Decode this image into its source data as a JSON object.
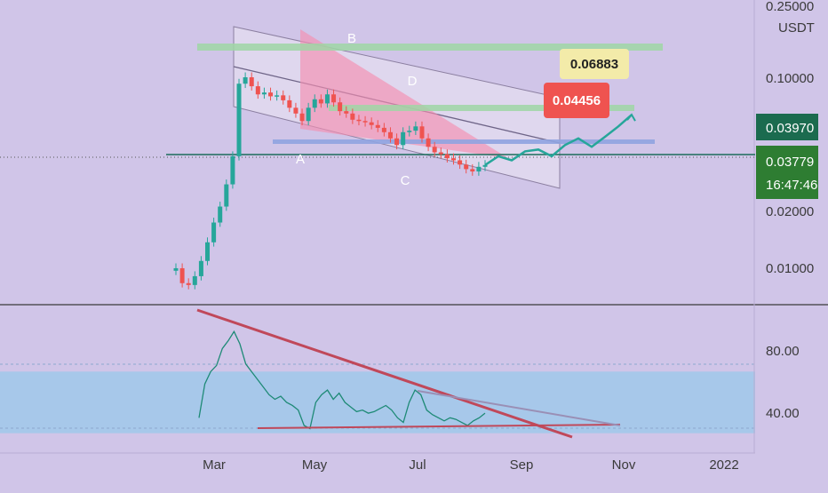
{
  "colors": {
    "background": "#d0c5e8",
    "candle_up": "#26a69a",
    "candle_down": "#ef5350",
    "channel_fill": "#e4dcf0",
    "pink_wedge": "#f48fb1",
    "green_band": "#9fd6a5",
    "blue_band": "#8fa3e0",
    "rsi_zone": "#a7c8ea",
    "rsi_line": "#1e8a76",
    "trendline": "#c0485a",
    "projection": "#26a69a",
    "label_red": "#ef5350",
    "label_yellow": "#f3eba9",
    "label_green_dark": "#1b6b4f",
    "label_green": "#2e7d32"
  },
  "price_axis": {
    "unit": "USDT",
    "ticks": [
      "0.25000",
      "0.10000",
      "0.02000",
      "0.01000"
    ],
    "current_price_label": "0.03970",
    "last_price_label": "0.03779",
    "countdown_label": "16:47:46"
  },
  "rsi_axis": {
    "ticks": [
      "80.00",
      "40.00"
    ]
  },
  "time_axis": {
    "labels": [
      "Mar",
      "May",
      "Jul",
      "Sep",
      "Nov",
      "2022"
    ]
  },
  "annotations": {
    "wave_labels": [
      "A",
      "B",
      "C",
      "D"
    ],
    "target_low": "0.04456",
    "target_high": "0.06883"
  },
  "chart_data": {
    "type": "candlestick",
    "y_scale": "log",
    "ylim": [
      0.0075,
      0.25
    ],
    "x": [
      "Feb-20",
      "Feb-22",
      "Feb-24",
      "Feb-26",
      "Feb-28",
      "Mar-02",
      "Mar-04",
      "Mar-06",
      "Mar-08",
      "Mar-10",
      "Mar-14",
      "Mar-18",
      "Mar-22",
      "Mar-26",
      "Mar-30",
      "Apr-03",
      "Apr-07",
      "Apr-11",
      "Apr-15",
      "Apr-19",
      "Apr-23",
      "Apr-27",
      "May-01",
      "May-05",
      "May-09",
      "May-13",
      "May-17",
      "May-21",
      "May-25",
      "May-29",
      "Jun-02",
      "Jun-06",
      "Jun-10",
      "Jun-14",
      "Jun-18",
      "Jun-22",
      "Jun-26",
      "Jun-30",
      "Jul-04",
      "Jul-08",
      "Jul-12",
      "Jul-16",
      "Jul-20",
      "Jul-24",
      "Jul-28",
      "Aug-01",
      "Aug-05",
      "Aug-09",
      "Aug-13",
      "Aug-17"
    ],
    "close": [
      0.011,
      0.0092,
      0.009,
      0.01,
      0.012,
      0.015,
      0.019,
      0.023,
      0.03,
      0.042,
      0.1,
      0.108,
      0.097,
      0.088,
      0.09,
      0.086,
      0.087,
      0.082,
      0.075,
      0.07,
      0.064,
      0.075,
      0.083,
      0.079,
      0.088,
      0.08,
      0.072,
      0.07,
      0.065,
      0.064,
      0.063,
      0.061,
      0.059,
      0.056,
      0.052,
      0.048,
      0.056,
      0.057,
      0.06,
      0.052,
      0.047,
      0.044,
      0.043,
      0.041,
      0.04,
      0.038,
      0.036,
      0.035,
      0.037,
      0.0378
    ],
    "rsi": [
      40,
      62,
      70,
      74,
      85,
      90,
      96,
      88,
      75,
      70,
      65,
      60,
      55,
      52,
      54,
      50,
      48,
      45,
      35,
      33,
      50,
      55,
      58,
      52,
      56,
      50,
      47,
      44,
      45,
      43,
      44,
      46,
      48,
      45,
      40,
      37,
      50,
      58,
      55,
      45,
      42,
      40,
      38,
      40,
      39,
      37,
      35,
      38,
      40,
      43
    ],
    "rsi_ylim": [
      20,
      110
    ],
    "rsi_band": [
      30,
      70
    ],
    "projection": [
      0.0378,
      0.042,
      0.04,
      0.0445,
      0.0455,
      0.042,
      0.048,
      0.052,
      0.047,
      0.053,
      0.06,
      0.069
    ],
    "horizontal_levels": [
      0.12,
      0.07,
      0.042,
      0.0378
    ]
  }
}
